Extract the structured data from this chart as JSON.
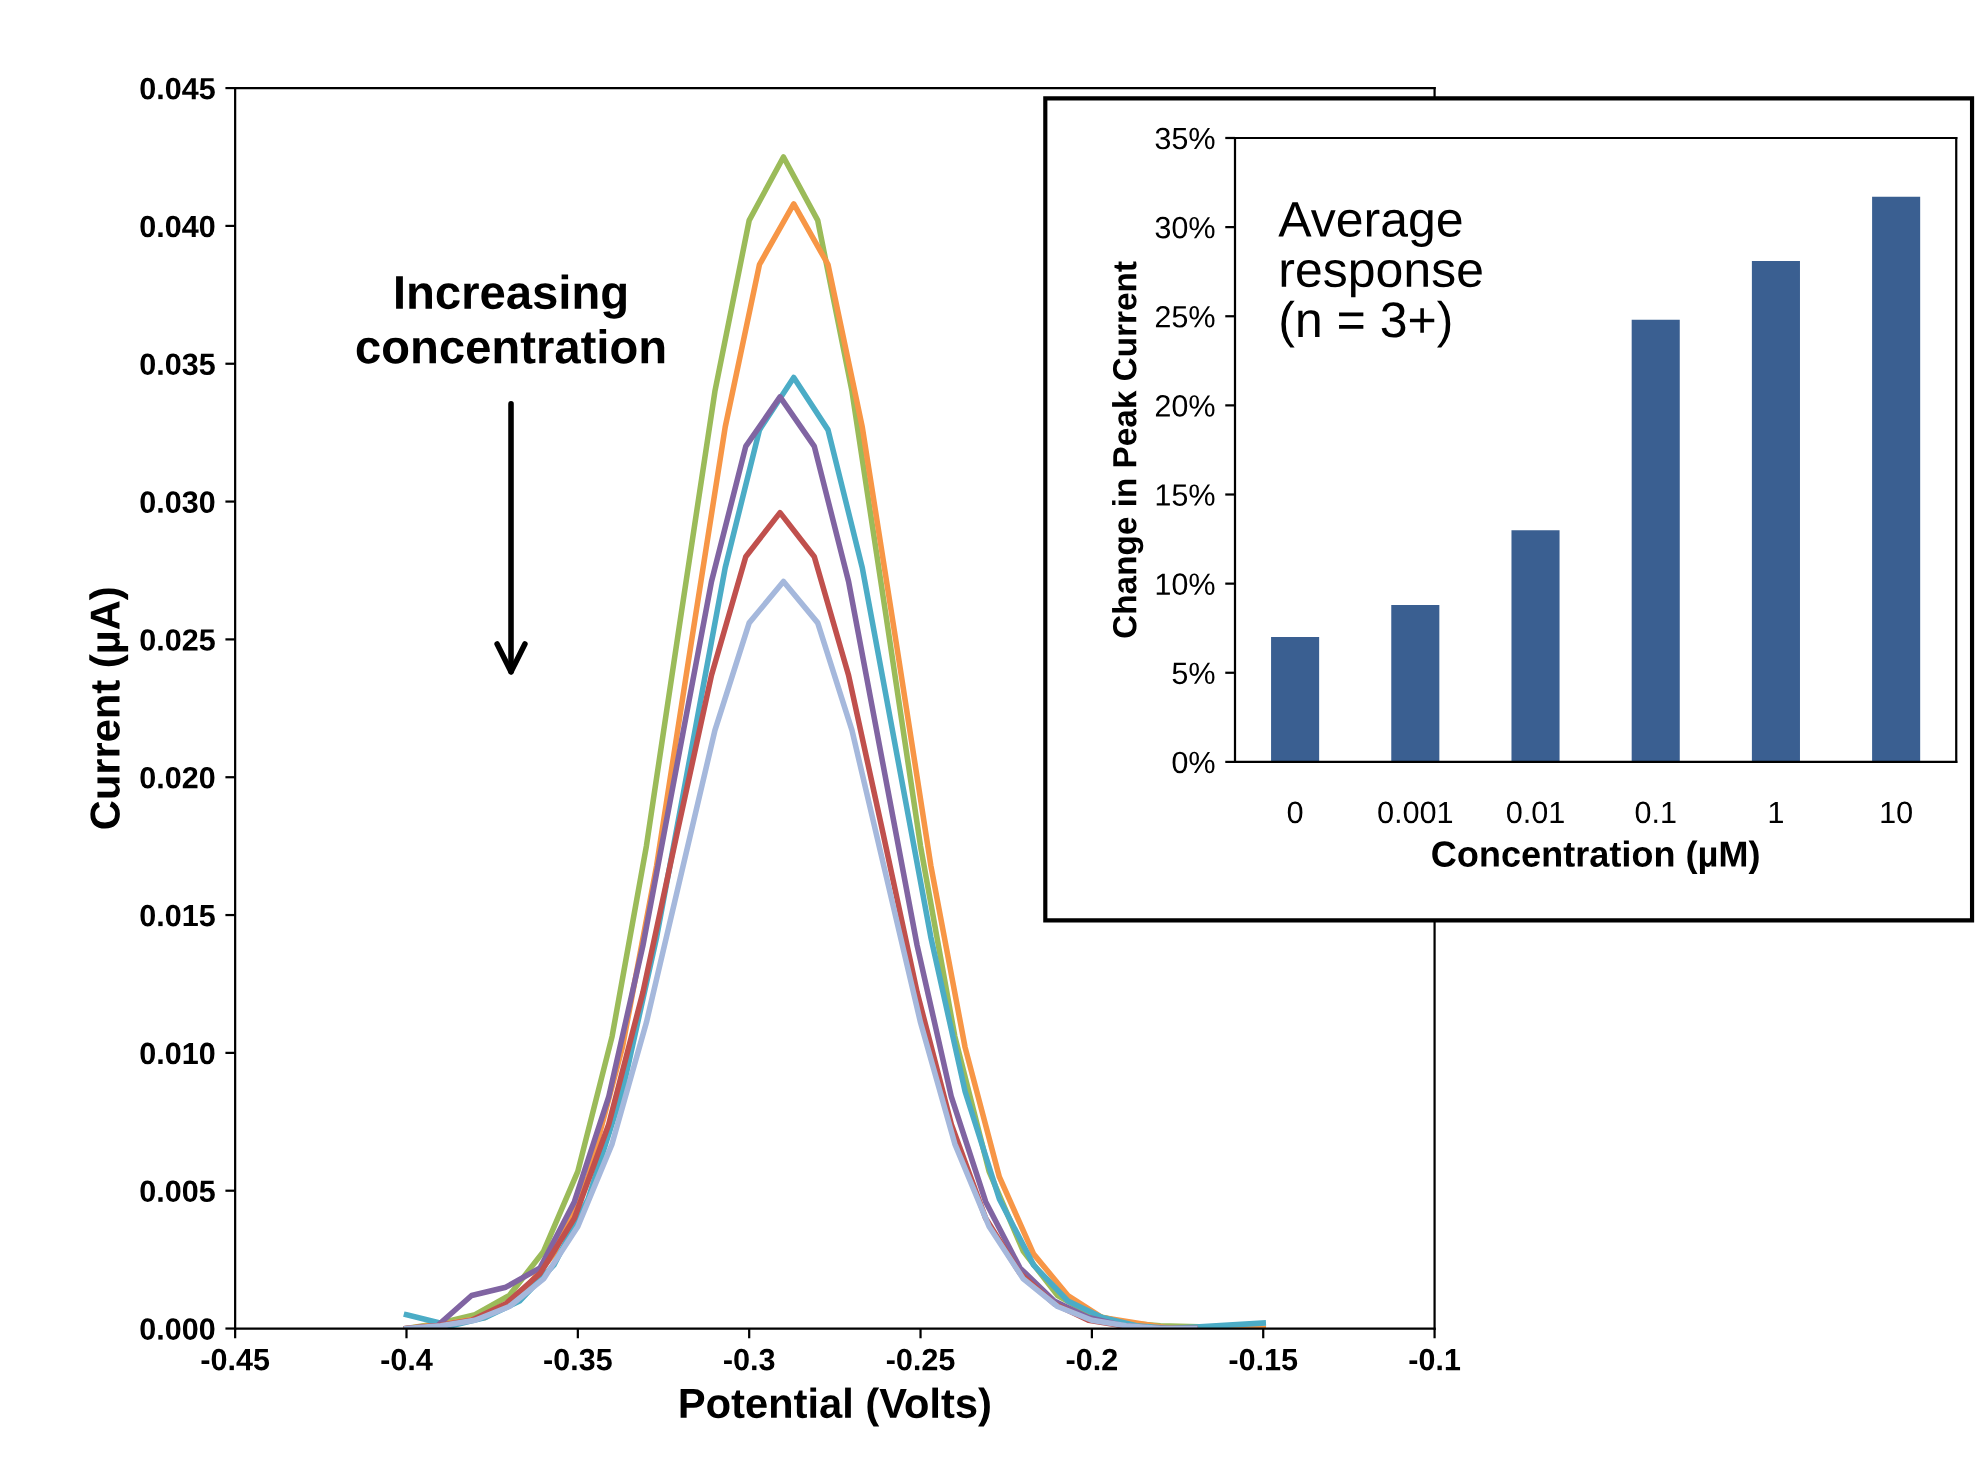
{
  "chart_data": [
    {
      "type": "line",
      "xlabel": "Potential (Volts)",
      "ylabel": "Current (µA)",
      "annotations": [
        "Increasing\nconcentration"
      ],
      "xlim": [
        -0.45,
        -0.1
      ],
      "xticks": [
        -0.45,
        -0.4,
        -0.35,
        -0.3,
        -0.25,
        -0.2,
        -0.15,
        -0.1
      ],
      "ylim": [
        0,
        0.045
      ],
      "yticks": [
        {
          "value": 0,
          "label": "0.000"
        },
        {
          "value": 0.005,
          "label": "0.005"
        },
        {
          "value": 0.01,
          "label": "0.010"
        },
        {
          "value": 0.015,
          "label": "0.015"
        },
        {
          "value": 0.02,
          "label": "0.020"
        },
        {
          "value": 0.025,
          "label": "0.025"
        },
        {
          "value": 0.03,
          "label": "0.030"
        },
        {
          "value": 0.035,
          "label": "0.035"
        },
        {
          "value": 0.04,
          "label": "0.040"
        },
        {
          "value": 0.045,
          "label": "0.045"
        }
      ],
      "grid": false,
      "legend": false,
      "marker": "none",
      "line_style": "solid",
      "series": [
        {
          "color": "#9bbb59",
          "x": [
            -0.4,
            -0.39,
            -0.38,
            -0.37,
            -0.36,
            -0.35,
            -0.34,
            -0.33,
            -0.32,
            -0.31,
            -0.3,
            -0.29,
            -0.28,
            -0.27,
            -0.26,
            -0.25,
            -0.24,
            -0.23,
            -0.22,
            -0.21,
            -0.2,
            -0.19,
            -0.18,
            -0.15
          ],
          "values": [
            0,
            0.0002,
            0.0005,
            0.0012,
            0.0028,
            0.0057,
            0.0106,
            0.0175,
            0.0258,
            0.034,
            0.0402,
            0.0425,
            0.0402,
            0.034,
            0.0258,
            0.0175,
            0.0106,
            0.0057,
            0.0028,
            0.0012,
            0.0005,
            0.0002,
            0.0001,
            0
          ]
        },
        {
          "color": "#f79646",
          "x": [
            -0.4,
            -0.387,
            -0.377,
            -0.367,
            -0.357,
            -0.347,
            -0.337,
            -0.327,
            -0.317,
            -0.307,
            -0.297,
            -0.287,
            -0.277,
            -0.267,
            -0.257,
            -0.247,
            -0.237,
            -0.227,
            -0.217,
            -0.207,
            -0.197,
            -0.187,
            -0.177,
            -0.15
          ],
          "values": [
            0,
            0.0002,
            0.0004,
            0.0012,
            0.0027,
            0.0055,
            0.0102,
            0.0168,
            0.0248,
            0.0327,
            0.0386,
            0.0408,
            0.0386,
            0.0327,
            0.0248,
            0.0168,
            0.0102,
            0.0055,
            0.0027,
            0.0012,
            0.0004,
            0.0002,
            0,
            0
          ]
        },
        {
          "color": "#4bacc6",
          "x": [
            -0.4,
            -0.387,
            -0.377,
            -0.367,
            -0.357,
            -0.347,
            -0.337,
            -0.327,
            -0.317,
            -0.307,
            -0.297,
            -0.287,
            -0.277,
            -0.267,
            -0.257,
            -0.247,
            -0.237,
            -0.227,
            -0.217,
            -0.207,
            -0.197,
            -0.187,
            -0.177,
            -0.15
          ],
          "values": [
            0.0005,
            0.0001,
            0.0004,
            0.001,
            0.0023,
            0.0047,
            0.0086,
            0.0142,
            0.0209,
            0.0276,
            0.0326,
            0.0345,
            0.0326,
            0.0276,
            0.0209,
            0.0142,
            0.0086,
            0.0047,
            0.0023,
            0.001,
            0.0004,
            0.0001,
            0,
            0.0002
          ]
        },
        {
          "color": "#8064a2",
          "x": [
            -0.4,
            -0.391,
            -0.381,
            -0.371,
            -0.361,
            -0.351,
            -0.341,
            -0.331,
            -0.321,
            -0.311,
            -0.301,
            -0.291,
            -0.281,
            -0.271,
            -0.261,
            -0.251,
            -0.241,
            -0.231,
            -0.221,
            -0.211,
            -0.201,
            -0.191,
            -0.181,
            -0.17
          ],
          "values": [
            0,
            0.0001,
            0.0012,
            0.0015,
            0.0022,
            0.0046,
            0.0084,
            0.0139,
            0.0205,
            0.0271,
            0.032,
            0.0338,
            0.032,
            0.0271,
            0.0205,
            0.0139,
            0.0084,
            0.0046,
            0.0022,
            0.001,
            0.0004,
            0.0001,
            0,
            0
          ]
        },
        {
          "color": "#c0504d",
          "x": [
            -0.4,
            -0.391,
            -0.381,
            -0.371,
            -0.361,
            -0.351,
            -0.341,
            -0.331,
            -0.321,
            -0.311,
            -0.301,
            -0.291,
            -0.281,
            -0.271,
            -0.261,
            -0.251,
            -0.241,
            -0.231,
            -0.221,
            -0.211,
            -0.201,
            -0.191,
            -0.181,
            -0.17
          ],
          "values": [
            0,
            0.0001,
            0.0003,
            0.0009,
            0.002,
            0.004,
            0.0074,
            0.0122,
            0.018,
            0.0237,
            0.028,
            0.0296,
            0.028,
            0.0237,
            0.018,
            0.0122,
            0.0074,
            0.004,
            0.002,
            0.0009,
            0.0003,
            0.0001,
            0,
            0
          ]
        },
        {
          "color": "#a5b8dc",
          "x": [
            -0.4,
            -0.39,
            -0.38,
            -0.37,
            -0.36,
            -0.35,
            -0.34,
            -0.33,
            -0.32,
            -0.31,
            -0.3,
            -0.29,
            -0.28,
            -0.27,
            -0.26,
            -0.25,
            -0.24,
            -0.23,
            -0.22,
            -0.21,
            -0.2,
            -0.19,
            -0.18,
            -0.17
          ],
          "values": [
            0,
            0.0001,
            0.0003,
            0.0008,
            0.0018,
            0.0037,
            0.0067,
            0.0111,
            0.0164,
            0.0217,
            0.0256,
            0.0271,
            0.0256,
            0.0217,
            0.0164,
            0.0111,
            0.0067,
            0.0037,
            0.0018,
            0.0008,
            0.0003,
            0.0001,
            0,
            0
          ]
        }
      ]
    },
    {
      "type": "bar",
      "xlabel": "Concentration (µM)",
      "ylabel": "Change in Peak Current",
      "annotations": [
        "Average\nresponse\n(n = 3+)"
      ],
      "categories": [
        "0",
        "0.001",
        "0.01",
        "0.1",
        "1",
        "10"
      ],
      "values": [
        7.0,
        8.8,
        13.0,
        24.8,
        28.1,
        31.7
      ],
      "color": "#3a5f91",
      "ylim": [
        0,
        35
      ],
      "yticks": [
        {
          "value": 0,
          "label": "0%"
        },
        {
          "value": 5,
          "label": "5%"
        },
        {
          "value": 10,
          "label": "10%"
        },
        {
          "value": 15,
          "label": "15%"
        },
        {
          "value": 20,
          "label": "20%"
        },
        {
          "value": 25,
          "label": "25%"
        },
        {
          "value": 30,
          "label": "30%"
        },
        {
          "value": 35,
          "label": "35%"
        }
      ],
      "grid": false,
      "legend": false
    }
  ]
}
